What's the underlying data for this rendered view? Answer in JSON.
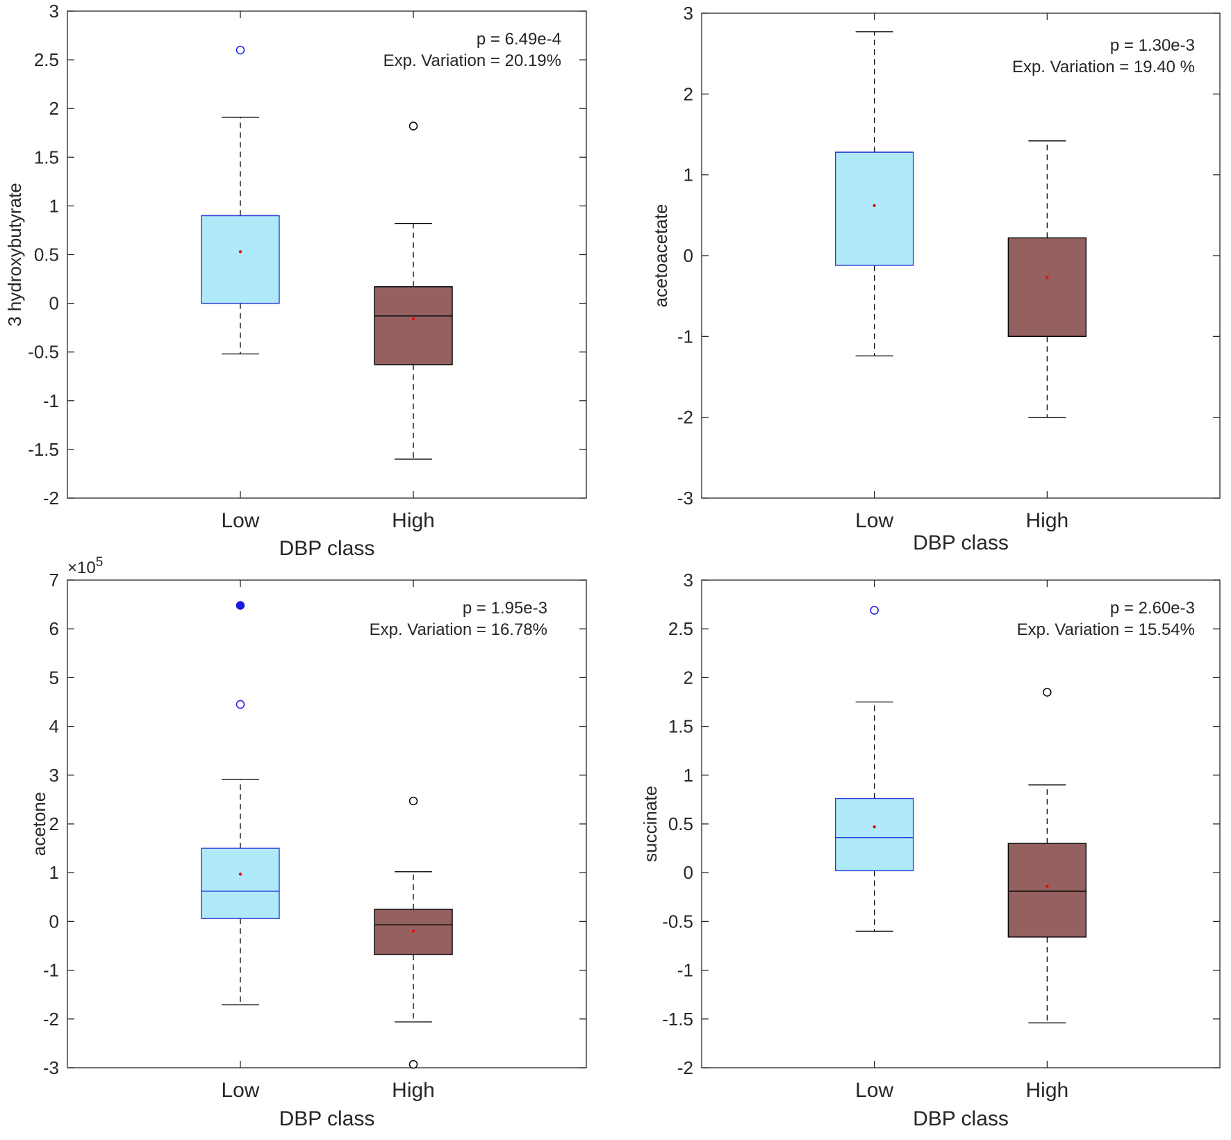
{
  "colors": {
    "low_fill": "#b0eafa",
    "low_stroke": "#2a3ad8",
    "high_fill": "#946060",
    "high_stroke": "#000000",
    "median_high": "#000000",
    "mean_dot": "#e01010",
    "outlier_low": "#1a1ae0",
    "outlier_high": "#000000",
    "axis": "#262626"
  },
  "chart_data": [
    {
      "type": "box",
      "title": "",
      "xlabel": "DBP class",
      "ylabel": "3 hydroxybutyrate",
      "categories": [
        "Low",
        "High"
      ],
      "ylim": [
        -2,
        3
      ],
      "yticks": [
        -2,
        -1.5,
        -1,
        -0.5,
        0,
        0.5,
        1,
        1.5,
        2,
        2.5,
        3
      ],
      "ytick_labels": [
        "-2",
        "-1.5",
        "-1",
        "-0.5",
        "0",
        "0.5",
        "1",
        "1.5",
        "2",
        "2.5",
        "3"
      ],
      "exponent_label": "",
      "annotation": [
        "p = 6.49e-4",
        "Exp. Variation = 20.19%"
      ],
      "boxes": [
        {
          "name": "Low",
          "q1": 0.0,
          "median": 0.9,
          "q3": 0.9,
          "whisker_low": -0.52,
          "whisker_high": 1.91,
          "mean": 0.53,
          "outliers": [
            {
              "value": 2.6,
              "filled": false
            }
          ]
        },
        {
          "name": "High",
          "q1": -0.63,
          "median": -0.13,
          "q3": 0.17,
          "whisker_low": -1.6,
          "whisker_high": 0.82,
          "mean": -0.16,
          "outliers": [
            {
              "value": 1.82,
              "filled": false
            }
          ]
        }
      ]
    },
    {
      "type": "box",
      "title": "",
      "xlabel": "DBP class",
      "ylabel": "acetoacetate",
      "categories": [
        "Low",
        "High"
      ],
      "ylim": [
        -3,
        3
      ],
      "yticks": [
        -3,
        -2,
        -1,
        0,
        1,
        2,
        3
      ],
      "ytick_labels": [
        "-3",
        "-2",
        "-1",
        "0",
        "1",
        "2",
        "3"
      ],
      "exponent_label": "",
      "annotation": [
        "p = 1.30e-3",
        "Exp. Variation = 19.40 %"
      ],
      "boxes": [
        {
          "name": "Low",
          "q1": -0.12,
          "median": 1.28,
          "q3": 1.28,
          "whisker_low": -1.24,
          "whisker_high": 2.77,
          "mean": 0.62,
          "outliers": []
        },
        {
          "name": "High",
          "q1": -1.0,
          "median": -1.0,
          "q3": 0.22,
          "whisker_low": -2.0,
          "whisker_high": 1.42,
          "mean": -0.27,
          "outliers": []
        }
      ]
    },
    {
      "type": "box",
      "title": "",
      "xlabel": "DBP class",
      "ylabel": "acetone",
      "categories": [
        "Low",
        "High"
      ],
      "ylim": [
        -3,
        7
      ],
      "yticks": [
        -3,
        -2,
        -1,
        0,
        1,
        2,
        3,
        4,
        5,
        6,
        7
      ],
      "ytick_labels": [
        "-3",
        "-2",
        "-1",
        "0",
        "1",
        "2",
        "3",
        "4",
        "5",
        "6",
        "7"
      ],
      "exponent_label": "×10",
      "exponent_power": "5",
      "annotation": [
        "p = 1.95e-3",
        "Exp. Variation = 16.78%"
      ],
      "boxes": [
        {
          "name": "Low",
          "q1": 0.06,
          "median": 0.62,
          "q3": 1.5,
          "whisker_low": -1.71,
          "whisker_high": 2.91,
          "mean": 0.97,
          "outliers": [
            {
              "value": 6.48,
              "filled": true
            },
            {
              "value": 4.45,
              "filled": false
            }
          ]
        },
        {
          "name": "High",
          "q1": -0.68,
          "median": -0.07,
          "q3": 0.25,
          "whisker_low": -2.06,
          "whisker_high": 1.02,
          "mean": -0.2,
          "outliers": [
            {
              "value": 2.47,
              "filled": false
            },
            {
              "value": -2.93,
              "filled": false
            }
          ]
        }
      ]
    },
    {
      "type": "box",
      "title": "",
      "xlabel": "DBP class",
      "ylabel": "succinate",
      "categories": [
        "Low",
        "High"
      ],
      "ylim": [
        -2,
        3
      ],
      "yticks": [
        -2,
        -1.5,
        -1,
        -0.5,
        0,
        0.5,
        1,
        1.5,
        2,
        2.5,
        3
      ],
      "ytick_labels": [
        "-2",
        "-1.5",
        "-1",
        "-0.5",
        "0",
        "0.5",
        "1",
        "1.5",
        "2",
        "2.5",
        "3"
      ],
      "exponent_label": "",
      "annotation": [
        "p = 2.60e-3",
        "Exp. Variation = 15.54%"
      ],
      "boxes": [
        {
          "name": "Low",
          "q1": 0.02,
          "median": 0.36,
          "q3": 0.76,
          "whisker_low": -0.6,
          "whisker_high": 1.75,
          "mean": 0.47,
          "outliers": [
            {
              "value": 2.69,
              "filled": false
            }
          ]
        },
        {
          "name": "High",
          "q1": -0.66,
          "median": -0.19,
          "q3": 0.3,
          "whisker_low": -1.54,
          "whisker_high": 0.9,
          "mean": -0.14,
          "outliers": [
            {
              "value": 1.85,
              "filled": false
            }
          ]
        }
      ]
    }
  ]
}
